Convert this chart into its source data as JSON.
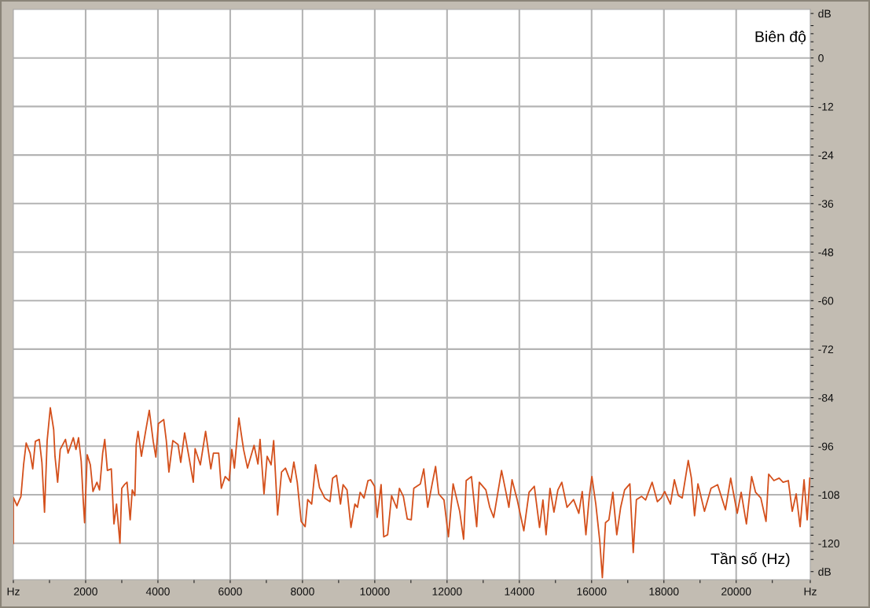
{
  "chart_data": {
    "type": "line",
    "xlabel": "Tần số (Hz)",
    "ylabel": "Biên độ",
    "xlim": [
      0,
      22050
    ],
    "ylim": [
      -129,
      12
    ],
    "xticks": [
      {
        "value": 0,
        "label": "Hz"
      },
      {
        "value": 1000,
        "label": null
      },
      2000,
      {
        "value": 3000,
        "label": null
      },
      4000,
      {
        "value": 5000,
        "label": null
      },
      6000,
      {
        "value": 7000,
        "label": null
      },
      8000,
      {
        "value": 9000,
        "label": null
      },
      10000,
      {
        "value": 11000,
        "label": null
      },
      12000,
      {
        "value": 13000,
        "label": null
      },
      14000,
      {
        "value": 15000,
        "label": null
      },
      16000,
      {
        "value": 17000,
        "label": null
      },
      18000,
      {
        "value": 19000,
        "label": null
      },
      20000,
      {
        "value": 21000,
        "label": null
      },
      {
        "value": 22050,
        "label": "Hz"
      }
    ],
    "yticks": [
      {
        "value": 11,
        "label": "dB"
      },
      {
        "value": 8,
        "label": null
      },
      {
        "value": 6,
        "label": null
      },
      {
        "value": 4,
        "label": null
      },
      {
        "value": 2,
        "label": null
      },
      0,
      {
        "value": -2,
        "label": null
      },
      {
        "value": -4,
        "label": null
      },
      {
        "value": -6,
        "label": null
      },
      {
        "value": -8,
        "label": null
      },
      {
        "value": -10,
        "label": null
      },
      -12,
      {
        "value": -14,
        "label": null
      },
      {
        "value": -16,
        "label": null
      },
      {
        "value": -18,
        "label": null
      },
      {
        "value": -20,
        "label": null
      },
      {
        "value": -22,
        "label": null
      },
      -24,
      {
        "value": -26,
        "label": null
      },
      {
        "value": -28,
        "label": null
      },
      {
        "value": -30,
        "label": null
      },
      {
        "value": -32,
        "label": null
      },
      {
        "value": -34,
        "label": null
      },
      -36,
      {
        "value": -38,
        "label": null
      },
      {
        "value": -40,
        "label": null
      },
      {
        "value": -42,
        "label": null
      },
      {
        "value": -44,
        "label": null
      },
      {
        "value": -46,
        "label": null
      },
      -48,
      {
        "value": -50,
        "label": null
      },
      {
        "value": -52,
        "label": null
      },
      {
        "value": -54,
        "label": null
      },
      {
        "value": -56,
        "label": null
      },
      {
        "value": -58,
        "label": null
      },
      -60,
      {
        "value": -62,
        "label": null
      },
      {
        "value": -64,
        "label": null
      },
      {
        "value": -66,
        "label": null
      },
      {
        "value": -68,
        "label": null
      },
      {
        "value": -70,
        "label": null
      },
      -72,
      {
        "value": -74,
        "label": null
      },
      {
        "value": -76,
        "label": null
      },
      {
        "value": -78,
        "label": null
      },
      {
        "value": -80,
        "label": null
      },
      {
        "value": -82,
        "label": null
      },
      -84,
      {
        "value": -86,
        "label": null
      },
      {
        "value": -88,
        "label": null
      },
      {
        "value": -90,
        "label": null
      },
      {
        "value": -92,
        "label": null
      },
      {
        "value": -94,
        "label": null
      },
      -96,
      {
        "value": -98,
        "label": null
      },
      {
        "value": -100,
        "label": null
      },
      {
        "value": -102,
        "label": null
      },
      {
        "value": -104,
        "label": null
      },
      {
        "value": -106,
        "label": null
      },
      -108,
      {
        "value": -110,
        "label": null
      },
      {
        "value": -112,
        "label": null
      },
      {
        "value": -114,
        "label": null
      },
      {
        "value": -116,
        "label": null
      },
      {
        "value": -118,
        "label": null
      },
      -120,
      {
        "value": -122,
        "label": null
      },
      {
        "value": -124,
        "label": null
      },
      {
        "value": -127,
        "label": "dB"
      }
    ],
    "grid": true,
    "line_style": "solid",
    "marker": "none",
    "series": [
      {
        "color": "#d4501c",
        "x": [
          0,
          0,
          101,
          210,
          283,
          355,
          464,
          536,
          609,
          717,
          790,
          862,
          935,
          1022,
          1116,
          1152,
          1225,
          1297,
          1442,
          1514,
          1659,
          1732,
          1804,
          1877,
          1935,
          1971,
          2043,
          2130,
          2203,
          2312,
          2384,
          2471,
          2529,
          2602,
          2710,
          2783,
          2855,
          2949,
          3000,
          3073,
          3145,
          3232,
          3290,
          3362,
          3399,
          3450,
          3544,
          3652,
          3761,
          3870,
          3942,
          4014,
          4160,
          4232,
          4304,
          4413,
          4558,
          4631,
          4739,
          4848,
          4979,
          5029,
          5174,
          5319,
          5464,
          5536,
          5681,
          5754,
          5862,
          5971,
          6044,
          6116,
          6240,
          6370,
          6479,
          6660,
          6768,
          6826,
          6935,
          7022,
          7131,
          7203,
          7312,
          7421,
          7529,
          7674,
          7761,
          7855,
          7964,
          8073,
          8145,
          8254,
          8362,
          8471,
          8616,
          8761,
          8834,
          8942,
          9051,
          9124,
          9232,
          9341,
          9450,
          9522,
          9595,
          9703,
          9812,
          9885,
          9994,
          10066,
          10175,
          10248,
          10356,
          10465,
          10610,
          10682,
          10791,
          10900,
          11009,
          11081,
          11262,
          11356,
          11465,
          11588,
          11683,
          11770,
          11915,
          12038,
          12168,
          12350,
          12458,
          12530,
          12675,
          12820,
          12892,
          13074,
          13182,
          13291,
          13508,
          13617,
          13711,
          13798,
          13943,
          14124,
          14269,
          14414,
          14559,
          14653,
          14740,
          14849,
          14958,
          15067,
          15175,
          15320,
          15501,
          15646,
          15740,
          15842,
          15936,
          16007,
          16116,
          16225,
          16297,
          16384,
          16478,
          16587,
          16696,
          16804,
          16913,
          17058,
          17152,
          17239,
          17384,
          17493,
          17674,
          17819,
          17928,
          18022,
          18181,
          18290,
          18399,
          18508,
          18674,
          18761,
          18848,
          18942,
          19123,
          19305,
          19486,
          19703,
          19848,
          20029,
          20138,
          20283,
          20428,
          20537,
          20682,
          20826,
          20899,
          21044,
          21189,
          21298,
          21443,
          21551,
          21660,
          21769,
          21878,
          21965,
          22037
        ],
        "values": [
          -120,
          -108.7,
          -110.7,
          -108.4,
          -100.6,
          -95.2,
          -97.7,
          -101.6,
          -94.8,
          -94.3,
          -100,
          -112.3,
          -94.6,
          -86.5,
          -91.9,
          -98.5,
          -104.9,
          -96.8,
          -94.3,
          -97.7,
          -93.9,
          -96.8,
          -93.9,
          -99.7,
          -109.7,
          -114.9,
          -98.1,
          -100.6,
          -107.2,
          -104.9,
          -106.8,
          -97.7,
          -94.3,
          -102,
          -101.6,
          -115.2,
          -110.3,
          -120,
          -106.4,
          -105.5,
          -104.9,
          -114.2,
          -106.8,
          -108.2,
          -95.6,
          -92.3,
          -98.5,
          -92.7,
          -87.1,
          -94.8,
          -98.7,
          -90.4,
          -89.4,
          -94.6,
          -102.4,
          -94.6,
          -95.6,
          -100,
          -92.7,
          -98.1,
          -104.9,
          -96.6,
          -100.6,
          -92.3,
          -101.6,
          -97.7,
          -97.7,
          -106.4,
          -103.5,
          -104.5,
          -96.8,
          -101.4,
          -89,
          -96.8,
          -101.4,
          -95.8,
          -100.4,
          -94.3,
          -107.8,
          -98.5,
          -100.6,
          -94.6,
          -113,
          -102.4,
          -101.4,
          -104.9,
          -99.9,
          -104.9,
          -114.6,
          -115.9,
          -109.2,
          -110.3,
          -100.6,
          -106.2,
          -108.8,
          -109.7,
          -103.9,
          -103.2,
          -110.3,
          -105.5,
          -106.8,
          -116.1,
          -110.3,
          -111.1,
          -107.4,
          -108.8,
          -104.5,
          -104.3,
          -105.9,
          -113.6,
          -105.5,
          -118.4,
          -117.9,
          -108.2,
          -111.3,
          -106.4,
          -108.4,
          -114,
          -114.2,
          -106.4,
          -105.3,
          -101.6,
          -111.1,
          -105.3,
          -101,
          -107.8,
          -109.3,
          -118.4,
          -105.3,
          -112.1,
          -119,
          -104.5,
          -103.5,
          -115.9,
          -104.9,
          -106.8,
          -111.1,
          -113.6,
          -102,
          -106.8,
          -111.1,
          -104.3,
          -109.3,
          -116.9,
          -107.4,
          -105.9,
          -116.1,
          -109.3,
          -117.9,
          -106.4,
          -112.3,
          -106.8,
          -104.9,
          -111.1,
          -109.2,
          -112.6,
          -107.2,
          -117.9,
          -108.4,
          -103.5,
          -110.3,
          -119.4,
          -128.5,
          -114.9,
          -114.2,
          -107.4,
          -117.9,
          -111.1,
          -106.8,
          -105.3,
          -122.3,
          -109.2,
          -108.4,
          -109.3,
          -104.9,
          -109.7,
          -108.8,
          -107.2,
          -110.3,
          -104.3,
          -108.2,
          -108.8,
          -99.5,
          -103.9,
          -113.2,
          -105.3,
          -112.1,
          -106.4,
          -105.5,
          -111.7,
          -103.9,
          -112.6,
          -107.4,
          -115.2,
          -103.5,
          -107.4,
          -108.8,
          -114.6,
          -102.9,
          -104.5,
          -103.9,
          -104.9,
          -104.5,
          -112.1,
          -107.8,
          -115.9,
          -104.3,
          -114.2,
          -103.9
        ]
      }
    ]
  }
}
